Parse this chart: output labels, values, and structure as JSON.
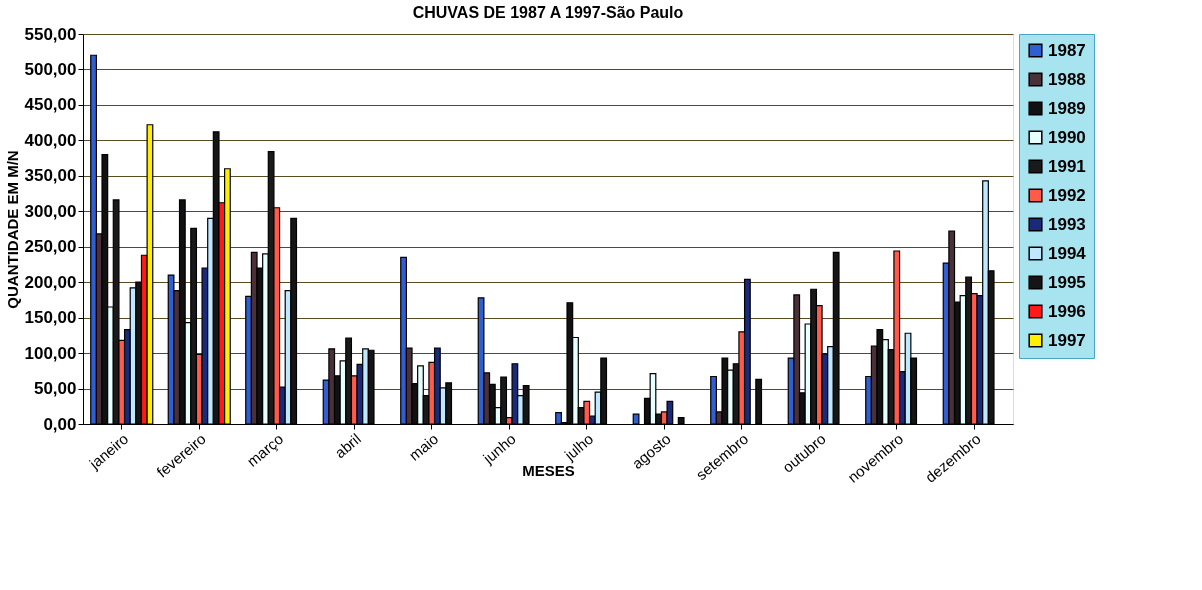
{
  "chart_data": {
    "type": "bar",
    "title": "CHUVAS DE 1987 A 1997-São Paulo",
    "xlabel": "MESES",
    "ylabel": "QUANTIDADE EM M/N",
    "categories": [
      "janeiro",
      "fevereiro",
      "março",
      "abril",
      "maio",
      "junho",
      "julho",
      "agosto",
      "setembro",
      "outubro",
      "novembro",
      "dezembro"
    ],
    "series": [
      {
        "name": "1987",
        "color": "#2f5fd0",
        "values": [
          520,
          210,
          180,
          62,
          235,
          178,
          16,
          14,
          67,
          93,
          67,
          227
        ]
      },
      {
        "name": "1988",
        "color": "#4a3038",
        "values": [
          268,
          188,
          242,
          106,
          107,
          72,
          2,
          null,
          17,
          182,
          110,
          272
        ]
      },
      {
        "name": "1989",
        "color": "#111111",
        "values": [
          380,
          316,
          220,
          68,
          57,
          56,
          171,
          36,
          93,
          44,
          133,
          172
        ]
      },
      {
        "name": "1990",
        "color": "#e8ffff",
        "values": [
          165,
          143,
          240,
          89,
          82,
          23,
          122,
          71,
          76,
          141,
          119,
          181
        ]
      },
      {
        "name": "1991",
        "color": "#1a1a1a",
        "values": [
          316,
          276,
          384,
          121,
          40,
          66,
          23,
          14,
          85,
          190,
          105,
          207
        ]
      },
      {
        "name": "1992",
        "color": "#ff5a4a",
        "values": [
          118,
          98,
          305,
          68,
          87,
          9,
          32,
          17,
          130,
          167,
          244,
          184
        ]
      },
      {
        "name": "1993",
        "color": "#1a2a7a",
        "values": [
          133,
          220,
          52,
          84,
          107,
          85,
          11,
          32,
          204,
          99,
          74,
          181
        ]
      },
      {
        "name": "1994",
        "color": "#bfe8ff",
        "values": [
          192,
          290,
          188,
          106,
          51,
          40,
          45,
          null,
          null,
          109,
          128,
          343
        ]
      },
      {
        "name": "1995",
        "color": "#151515",
        "values": [
          200,
          412,
          290,
          104,
          58,
          54,
          93,
          9,
          63,
          242,
          93,
          216
        ]
      },
      {
        "name": "1996",
        "color": "#ff1a1a",
        "values": [
          238,
          312,
          null,
          null,
          null,
          null,
          null,
          null,
          null,
          null,
          null,
          null
        ]
      },
      {
        "name": "1997",
        "color": "#ffee00",
        "values": [
          422,
          360,
          null,
          null,
          null,
          null,
          null,
          null,
          null,
          null,
          null,
          null
        ]
      }
    ],
    "ylim": [
      0,
      550
    ],
    "yticks": [
      {
        "value": 0,
        "label": "0,00"
      },
      {
        "value": 50,
        "label": "50,00"
      },
      {
        "value": 100,
        "label": "100,00"
      },
      {
        "value": 150,
        "label": "150,00"
      },
      {
        "value": 200,
        "label": "200,00"
      },
      {
        "value": 250,
        "label": "250,00"
      },
      {
        "value": 300,
        "label": "300,00"
      },
      {
        "value": 350,
        "label": "350,00"
      },
      {
        "value": 400,
        "label": "400,00"
      },
      {
        "value": 450,
        "label": "450,00"
      },
      {
        "value": 500,
        "label": "500,00"
      },
      {
        "value": 550,
        "label": "550,00"
      }
    ],
    "grid": "y",
    "legend": "right"
  }
}
